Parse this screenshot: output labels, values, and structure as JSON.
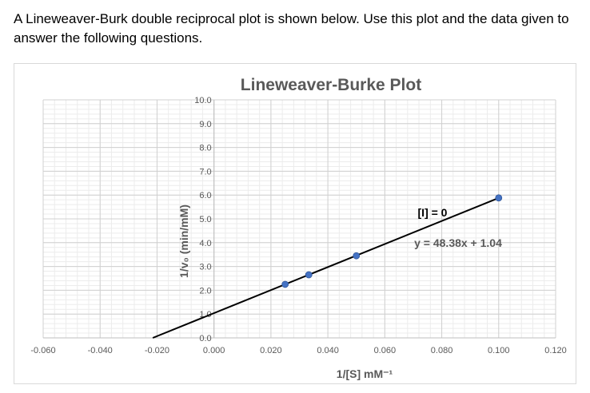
{
  "question_text": "A Lineweaver-Burk double reciprocal plot is shown below. Use this plot and the data given to answer the following questions.",
  "chart_data": {
    "type": "scatter",
    "title": "Lineweaver-Burke Plot",
    "xlabel": "1/[S] mM⁻¹",
    "ylabel": "1/v₀ (min/mM)",
    "xlim": [
      -0.06,
      0.12
    ],
    "ylim": [
      0,
      10
    ],
    "x_ticks": [
      "-0.060",
      "-0.040",
      "-0.020",
      "0.000",
      "0.020",
      "0.040",
      "0.060",
      "0.080",
      "0.100",
      "0.120"
    ],
    "y_ticks": [
      "0.0",
      "1.0",
      "2.0",
      "3.0",
      "4.0",
      "5.0",
      "6.0",
      "7.0",
      "8.0",
      "9.0",
      "10.0"
    ],
    "grid": true,
    "series": [
      {
        "name": "[I] = 0",
        "x": [
          0.025,
          0.0333,
          0.05,
          0.1
        ],
        "y": [
          2.25,
          2.65,
          3.45,
          5.88
        ],
        "color": "#4472c4"
      }
    ],
    "trendline": {
      "label": "y = 48.38x + 1.04",
      "slope": 48.38,
      "intercept": 1.04,
      "x_range": [
        -0.0215,
        0.1
      ],
      "color": "#000000"
    }
  }
}
